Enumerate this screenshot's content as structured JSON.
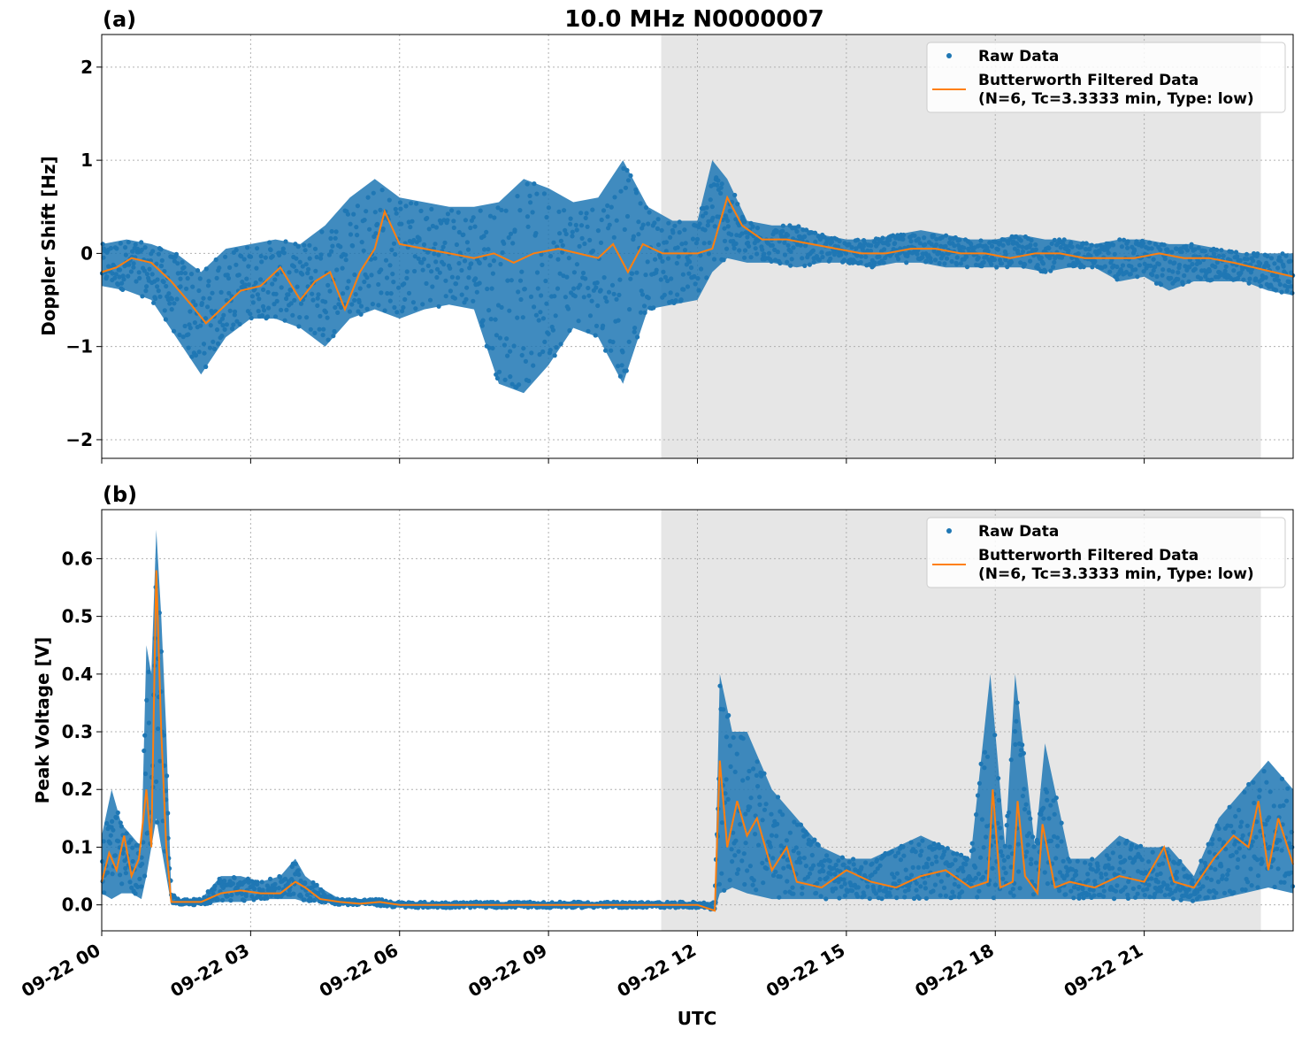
{
  "figure": {
    "title": "10.0 MHz N0000007",
    "xlabel": "UTC"
  },
  "chart_data": [
    {
      "type": "scatter",
      "panel_label": "(a)",
      "title": "10.0 MHz N0000007",
      "xlabel": "",
      "ylabel": "Doppler Shift [Hz]",
      "xlim": [
        0,
        24
      ],
      "ylim": [
        -2.2,
        2.35
      ],
      "grid": true,
      "x_ticks": [
        0,
        3,
        6,
        9,
        12,
        15,
        18,
        21
      ],
      "x_tick_labels": [
        "09-22 00",
        "09-22 03",
        "09-22 06",
        "09-22 09",
        "09-22 12",
        "09-22 15",
        "09-22 18",
        "09-22 21"
      ],
      "y_ticks": [
        -2,
        -1,
        0,
        1,
        2
      ],
      "y_tick_labels": [
        "−2",
        "−1",
        "0",
        "1",
        "2"
      ],
      "shaded_region": [
        11.27,
        23.35
      ],
      "shade_color": "#e6e6e6",
      "legend_loc": "upper right",
      "legend": [
        "Raw Data",
        "Butterworth Filtered Data",
        "(N=6, Tc=3.3333 min, Type: low)"
      ],
      "colors": {
        "raw": "#1f77b4",
        "filtered": "#ff7f0e"
      },
      "series": [
        {
          "name": "Raw Data",
          "kind": "band",
          "x": [
            0,
            0.5,
            1.0,
            1.5,
            2.0,
            2.5,
            3.0,
            3.5,
            4.0,
            4.5,
            5.0,
            5.5,
            6.0,
            6.5,
            7.0,
            7.5,
            8.0,
            8.5,
            9.0,
            9.5,
            10.0,
            10.5,
            11.0,
            11.5,
            12.0,
            12.3,
            12.6,
            13.0,
            13.5,
            14.0,
            14.5,
            15.0,
            15.5,
            16.0,
            16.5,
            17.0,
            17.5,
            18.0,
            18.5,
            19.0,
            19.5,
            20.0,
            20.5,
            21.0,
            21.5,
            22.0,
            22.5,
            23.0,
            23.5,
            24.0
          ],
          "upper": [
            0.1,
            0.15,
            0.1,
            0.0,
            -0.2,
            0.05,
            0.1,
            0.15,
            0.1,
            0.3,
            0.6,
            0.8,
            0.6,
            0.55,
            0.5,
            0.5,
            0.55,
            0.8,
            0.7,
            0.55,
            0.6,
            1.0,
            0.5,
            0.35,
            0.35,
            1.0,
            0.8,
            0.35,
            0.3,
            0.3,
            0.2,
            0.15,
            0.15,
            0.2,
            0.25,
            0.2,
            0.15,
            0.15,
            0.2,
            0.15,
            0.15,
            0.1,
            0.15,
            0.15,
            0.1,
            0.1,
            0.05,
            0.0,
            0.0,
            0.0
          ],
          "lower": [
            -0.35,
            -0.4,
            -0.5,
            -0.9,
            -1.3,
            -0.9,
            -0.7,
            -0.7,
            -0.8,
            -1.0,
            -0.7,
            -0.6,
            -0.7,
            -0.6,
            -0.55,
            -0.6,
            -1.4,
            -1.5,
            -1.2,
            -0.8,
            -0.9,
            -1.4,
            -0.6,
            -0.55,
            -0.5,
            -0.2,
            -0.05,
            -0.1,
            -0.1,
            -0.15,
            -0.1,
            -0.1,
            -0.15,
            -0.1,
            -0.1,
            -0.15,
            -0.15,
            -0.15,
            -0.15,
            -0.2,
            -0.15,
            -0.15,
            -0.3,
            -0.25,
            -0.4,
            -0.3,
            -0.3,
            -0.3,
            -0.4,
            -0.45
          ]
        },
        {
          "name": "Butterworth Filtered Data",
          "kind": "line",
          "x": [
            0,
            0.3,
            0.6,
            1.0,
            1.4,
            1.8,
            2.1,
            2.4,
            2.8,
            3.2,
            3.6,
            4.0,
            4.3,
            4.6,
            4.9,
            5.2,
            5.5,
            5.7,
            6.0,
            6.5,
            7.0,
            7.5,
            7.9,
            8.3,
            8.7,
            9.2,
            9.6,
            10.0,
            10.3,
            10.6,
            10.9,
            11.3,
            11.7,
            12.0,
            12.3,
            12.6,
            12.9,
            13.3,
            13.8,
            14.3,
            14.8,
            15.3,
            15.8,
            16.3,
            16.8,
            17.3,
            17.8,
            18.3,
            18.8,
            19.3,
            19.8,
            20.3,
            20.8,
            21.3,
            21.8,
            22.3,
            22.8,
            23.2,
            23.6,
            24.0
          ],
          "y": [
            -0.2,
            -0.15,
            -0.05,
            -0.1,
            -0.3,
            -0.55,
            -0.75,
            -0.6,
            -0.4,
            -0.35,
            -0.15,
            -0.5,
            -0.3,
            -0.2,
            -0.6,
            -0.2,
            0.05,
            0.45,
            0.1,
            0.05,
            0.0,
            -0.05,
            0.0,
            -0.1,
            0.0,
            0.05,
            0.0,
            -0.05,
            0.1,
            -0.2,
            0.1,
            0.0,
            0.0,
            0.0,
            0.05,
            0.6,
            0.3,
            0.15,
            0.15,
            0.1,
            0.05,
            0.0,
            0.0,
            0.05,
            0.05,
            0.0,
            0.0,
            -0.05,
            0.0,
            0.0,
            -0.05,
            -0.05,
            -0.05,
            0.0,
            -0.05,
            -0.05,
            -0.1,
            -0.15,
            -0.2,
            -0.25
          ]
        }
      ]
    },
    {
      "type": "scatter",
      "panel_label": "(b)",
      "title": "",
      "xlabel": "UTC",
      "ylabel": "Peak Voltage [V]",
      "xlim": [
        0,
        24
      ],
      "ylim": [
        -0.045,
        0.685
      ],
      "grid": true,
      "x_ticks": [
        0,
        3,
        6,
        9,
        12,
        15,
        18,
        21
      ],
      "x_tick_labels": [
        "09-22 00",
        "09-22 03",
        "09-22 06",
        "09-22 09",
        "09-22 12",
        "09-22 15",
        "09-22 18",
        "09-22 21"
      ],
      "y_ticks": [
        0.0,
        0.1,
        0.2,
        0.3,
        0.4,
        0.5,
        0.6
      ],
      "y_tick_labels": [
        "0.0",
        "0.1",
        "0.2",
        "0.3",
        "0.4",
        "0.5",
        "0.6"
      ],
      "shaded_region": [
        11.27,
        23.35
      ],
      "shade_color": "#e6e6e6",
      "legend_loc": "upper right",
      "legend": [
        "Raw Data",
        "Butterworth Filtered Data",
        "(N=6, Tc=3.3333 min, Type: low)"
      ],
      "colors": {
        "raw": "#1f77b4",
        "filtered": "#ff7f0e"
      },
      "series": [
        {
          "name": "Raw Data",
          "kind": "band",
          "x": [
            0,
            0.2,
            0.4,
            0.6,
            0.8,
            0.9,
            1.0,
            1.1,
            1.2,
            1.3,
            1.4,
            1.6,
            2.0,
            2.4,
            2.8,
            3.2,
            3.6,
            3.9,
            4.1,
            4.4,
            4.8,
            5.2,
            5.6,
            6.0,
            7.0,
            8.0,
            9.0,
            10.0,
            11.0,
            12.0,
            12.35,
            12.45,
            12.7,
            13.0,
            13.5,
            14.0,
            14.5,
            15.0,
            15.5,
            16.0,
            16.5,
            17.0,
            17.5,
            17.9,
            18.2,
            18.4,
            18.8,
            19.0,
            19.5,
            20.0,
            20.5,
            21.0,
            21.5,
            22.0,
            22.5,
            23.0,
            23.5,
            24.0
          ],
          "upper": [
            0.12,
            0.2,
            0.14,
            0.12,
            0.1,
            0.45,
            0.4,
            0.65,
            0.5,
            0.3,
            0.02,
            0.01,
            0.01,
            0.05,
            0.05,
            0.04,
            0.05,
            0.08,
            0.05,
            0.03,
            0.01,
            0.01,
            0.01,
            0.005,
            0.005,
            0.005,
            0.005,
            0.005,
            0.005,
            0.005,
            0.005,
            0.4,
            0.3,
            0.3,
            0.2,
            0.15,
            0.1,
            0.08,
            0.08,
            0.1,
            0.12,
            0.1,
            0.08,
            0.4,
            0.1,
            0.4,
            0.1,
            0.28,
            0.08,
            0.08,
            0.12,
            0.1,
            0.1,
            0.05,
            0.15,
            0.2,
            0.25,
            0.2
          ],
          "lower": [
            0.02,
            0.01,
            0.02,
            0.02,
            0.01,
            0.05,
            0.1,
            0.15,
            0.1,
            0.05,
            0.0,
            0.0,
            0.0,
            0.005,
            0.005,
            0.01,
            0.01,
            0.01,
            0.005,
            0.005,
            0.0,
            0.0,
            -0.002,
            -0.005,
            -0.005,
            -0.005,
            -0.005,
            -0.005,
            -0.005,
            -0.005,
            -0.01,
            0.02,
            0.03,
            0.02,
            0.01,
            0.01,
            0.01,
            0.01,
            0.01,
            0.01,
            0.01,
            0.01,
            0.01,
            0.01,
            0.01,
            0.01,
            0.01,
            0.01,
            0.01,
            0.01,
            0.01,
            0.01,
            0.01,
            0.005,
            0.01,
            0.02,
            0.03,
            0.02
          ]
        },
        {
          "name": "Butterworth Filtered Data",
          "kind": "line",
          "x": [
            0,
            0.15,
            0.3,
            0.45,
            0.6,
            0.75,
            0.9,
            1.0,
            1.1,
            1.2,
            1.3,
            1.4,
            1.6,
            2.0,
            2.4,
            2.8,
            3.2,
            3.6,
            3.9,
            4.1,
            4.4,
            4.8,
            5.2,
            5.6,
            6.0,
            7.0,
            8.0,
            9.0,
            10.0,
            11.0,
            12.0,
            12.35,
            12.45,
            12.6,
            12.8,
            13.0,
            13.2,
            13.5,
            13.8,
            14.0,
            14.5,
            15.0,
            15.5,
            16.0,
            16.5,
            17.0,
            17.5,
            17.85,
            17.95,
            18.1,
            18.35,
            18.45,
            18.6,
            18.85,
            18.95,
            19.2,
            19.5,
            20.0,
            20.5,
            21.0,
            21.4,
            21.6,
            22.0,
            22.4,
            22.8,
            23.1,
            23.3,
            23.5,
            23.7,
            24.0
          ],
          "y": [
            0.04,
            0.09,
            0.06,
            0.12,
            0.05,
            0.08,
            0.2,
            0.1,
            0.58,
            0.3,
            0.1,
            0.005,
            0.005,
            0.005,
            0.02,
            0.025,
            0.02,
            0.02,
            0.04,
            0.03,
            0.01,
            0.005,
            0.002,
            0.005,
            0.0,
            0.0,
            0.0,
            0.0,
            0.0,
            0.0,
            0.0,
            -0.01,
            0.25,
            0.1,
            0.18,
            0.12,
            0.15,
            0.06,
            0.1,
            0.04,
            0.03,
            0.06,
            0.04,
            0.03,
            0.05,
            0.06,
            0.03,
            0.04,
            0.2,
            0.03,
            0.04,
            0.18,
            0.05,
            0.02,
            0.14,
            0.03,
            0.04,
            0.03,
            0.05,
            0.04,
            0.1,
            0.04,
            0.03,
            0.08,
            0.12,
            0.1,
            0.18,
            0.06,
            0.15,
            0.07
          ]
        }
      ]
    }
  ]
}
